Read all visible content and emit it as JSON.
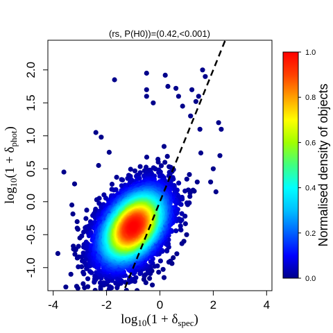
{
  "chart_data": {
    "type": "scatter",
    "title": "(rs, P(H0))=(0.42,<0.001)",
    "xlabel": {
      "base": "log",
      "base_sub": "10",
      "open": "(1 + δ",
      "sub": "spec",
      "close": ")"
    },
    "ylabel": {
      "base": "log",
      "base_sub": "10",
      "open": "(1 + δ",
      "sub": "phot",
      "close": ")"
    },
    "xlim": [
      -4.2,
      4.2
    ],
    "ylim": [
      -1.35,
      2.45
    ],
    "x_ticks": [
      {
        "value": -4,
        "label": "-4"
      },
      {
        "value": -2,
        "label": "-2"
      },
      {
        "value": 0,
        "label": "0"
      },
      {
        "value": 2,
        "label": "2"
      },
      {
        "value": 4,
        "label": "4"
      }
    ],
    "y_ticks": [
      {
        "value": -1.0,
        "label": "-1.0"
      },
      {
        "value": -0.5,
        "label": "-0.5"
      },
      {
        "value": 0.0,
        "label": "0.0"
      },
      {
        "value": 0.5,
        "label": "0.5"
      },
      {
        "value": 1.0,
        "label": "1.0"
      },
      {
        "value": 1.5,
        "label": "1.5"
      },
      {
        "value": 2.0,
        "label": "2.0"
      }
    ],
    "density_distribution": {
      "center": [
        -1.0,
        -0.38
      ],
      "sigma_x": 0.7,
      "sigma_y": 0.32,
      "correlation": 0.42,
      "n_points": 5000
    },
    "outlier_points": [
      [
        -1.7,
        1.85
      ],
      [
        -0.5,
        1.95
      ],
      [
        0.2,
        1.92
      ],
      [
        1.6,
        2.0
      ],
      [
        1.7,
        1.9
      ],
      [
        0.6,
        1.72
      ],
      [
        1.2,
        1.7
      ],
      [
        1.45,
        1.6
      ],
      [
        -0.5,
        1.7
      ],
      [
        0.3,
        1.75
      ],
      [
        -0.25,
        1.5
      ],
      [
        0.7,
        1.6
      ],
      [
        1.35,
        1.52
      ],
      [
        -0.5,
        1.6
      ],
      [
        0.85,
        1.45
      ],
      [
        1.15,
        1.3
      ],
      [
        1.5,
        1.1
      ],
      [
        2.2,
        1.2
      ],
      [
        2.3,
        1.1
      ],
      [
        -2.2,
        0.98
      ],
      [
        -1.9,
        0.75
      ],
      [
        -2.3,
        0.55
      ],
      [
        -3.2,
        0.27
      ],
      [
        -3.3,
        -0.05
      ],
      [
        -3.1,
        -0.4
      ],
      [
        -3.0,
        -0.55
      ],
      [
        -2.8,
        -0.7
      ],
      [
        -2.6,
        -0.95
      ],
      [
        -2.2,
        -1.1
      ],
      [
        -2.0,
        -1.25
      ],
      [
        -1.5,
        -1.2
      ],
      [
        -0.6,
        -1.18
      ],
      [
        -0.3,
        -1.05
      ],
      [
        0.3,
        -0.65
      ],
      [
        0.9,
        -0.6
      ],
      [
        1.0,
        -0.5
      ],
      [
        2.0,
        0.5
      ],
      [
        2.1,
        0.15
      ],
      [
        1.9,
        0.3
      ],
      [
        -3.6,
        0.45
      ],
      [
        1.4,
        0.3
      ],
      [
        0.5,
        -0.85
      ],
      [
        -1.8,
        -1.15
      ],
      [
        2.25,
        0.7
      ],
      [
        -2.4,
        1.05
      ]
    ],
    "regression_line": {
      "x": [
        -1.6,
        2.5
      ],
      "y": [
        -1.6,
        2.5
      ],
      "style": "dashed"
    },
    "grid": false,
    "legend": "none",
    "colorbar": {
      "label": "Normalised density of objects",
      "range": [
        0.0,
        1.0
      ],
      "ticks": [
        {
          "value": 0.0,
          "label": "0.0"
        },
        {
          "value": 0.2,
          "label": "0.2"
        },
        {
          "value": 0.4,
          "label": "0.4"
        },
        {
          "value": 0.6,
          "label": "0.6"
        },
        {
          "value": 0.8,
          "label": "0.8"
        },
        {
          "value": 1.0,
          "label": "1.0"
        }
      ],
      "colormap": [
        "#00008b",
        "#0000ff",
        "#0060ff",
        "#00bfff",
        "#00ffff",
        "#40ff80",
        "#a0ff00",
        "#ffff00",
        "#ffa000",
        "#ff4000",
        "#ff0000"
      ]
    }
  }
}
